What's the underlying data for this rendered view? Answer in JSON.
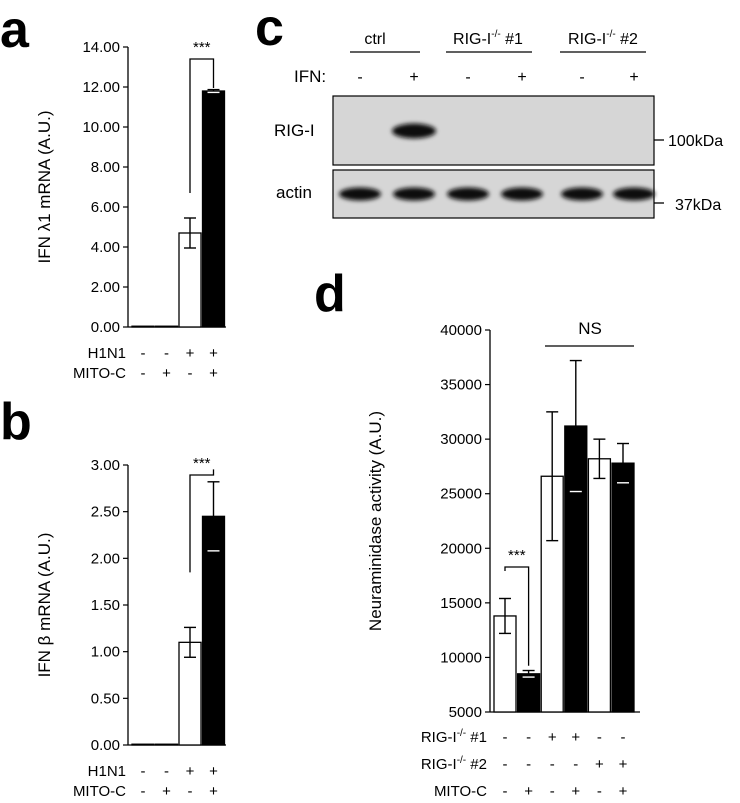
{
  "panels": {
    "a": "a",
    "b": "b",
    "c": "c",
    "d": "d"
  },
  "chart_data": [
    {
      "id": "a",
      "type": "bar",
      "ylabel": "IFN λ1 mRNA (A.U.)",
      "ylim": [
        0,
        14
      ],
      "yticks": [
        "0.00",
        "2.00",
        "4.00",
        "6.00",
        "8.00",
        "10.00",
        "12.00",
        "14.00"
      ],
      "values": [
        0.02,
        0.02,
        4.7,
        11.8
      ],
      "errors": [
        0,
        0,
        0.75,
        0.07
      ],
      "fills": [
        "#ffffff",
        "#ffffff",
        "#ffffff",
        "#000000"
      ],
      "conditions": [
        {
          "label": "H1N1",
          "signs": [
            "-",
            "-",
            "+",
            "+"
          ]
        },
        {
          "label": "MITO-C",
          "signs": [
            "-",
            "+",
            "-",
            "+"
          ]
        }
      ],
      "significance": "***"
    },
    {
      "id": "b",
      "type": "bar",
      "ylabel": "IFN β mRNA (A.U.)",
      "ylim": [
        0,
        3
      ],
      "yticks": [
        "0.00",
        "0.50",
        "1.00",
        "1.50",
        "2.00",
        "2.50",
        "3.00"
      ],
      "values": [
        0.005,
        0.005,
        1.1,
        2.45
      ],
      "errors": [
        0,
        0,
        0.16,
        0.37
      ],
      "fills": [
        "#ffffff",
        "#ffffff",
        "#ffffff",
        "#000000"
      ],
      "conditions": [
        {
          "label": "H1N1",
          "signs": [
            "-",
            "-",
            "+",
            "+"
          ]
        },
        {
          "label": "MITO-C",
          "signs": [
            "-",
            "+",
            "-",
            "+"
          ]
        }
      ],
      "significance": "***"
    },
    {
      "id": "d",
      "type": "bar",
      "ylabel": "Neuraminidase activity (A.U.)",
      "ylim": [
        5000,
        40000
      ],
      "yticks": [
        "5000",
        "10000",
        "15000",
        "20000",
        "25000",
        "30000",
        "35000",
        "40000"
      ],
      "values": [
        13800,
        8500,
        26600,
        31200,
        28200,
        27800
      ],
      "errors": [
        1600,
        300,
        5900,
        6000,
        1800,
        1800
      ],
      "fills": [
        "#ffffff",
        "#000000",
        "#ffffff",
        "#000000",
        "#ffffff",
        "#000000"
      ],
      "conditions": [
        {
          "label": "RIG-I-/- #1",
          "signs": [
            "-",
            "-",
            "+",
            "+",
            "-",
            "-"
          ]
        },
        {
          "label": "RIG-I-/- #2",
          "signs": [
            "-",
            "-",
            "-",
            "-",
            "+",
            "+"
          ]
        },
        {
          "label": "MITO-C",
          "signs": [
            "-",
            "+",
            "-",
            "+",
            "-",
            "+"
          ]
        }
      ],
      "significance": "***",
      "ns_label": "NS"
    }
  ],
  "blot": {
    "groups": [
      "ctrl",
      "RIG-I-/- #1",
      "RIG-I-/- #2"
    ],
    "ifn_label": "IFN:",
    "ifn_signs": [
      "-",
      "+",
      "-",
      "+",
      "-",
      "+"
    ],
    "rows": [
      {
        "label": "RIG-I",
        "marker": "100kDa"
      },
      {
        "label": "actin",
        "marker": "37kDa"
      }
    ]
  }
}
